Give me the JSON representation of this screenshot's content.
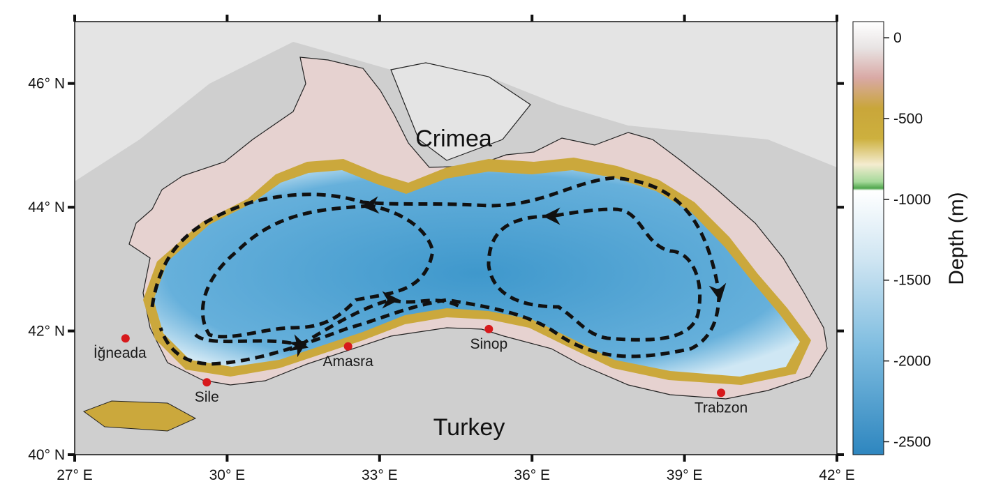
{
  "map": {
    "xlim": [
      27,
      42
    ],
    "ylim": [
      40,
      47
    ],
    "xticks": [
      {
        "value": 27,
        "label": "27° E"
      },
      {
        "value": 30,
        "label": "30° E"
      },
      {
        "value": 33,
        "label": "33° E"
      },
      {
        "value": 36,
        "label": "36° E"
      },
      {
        "value": 39,
        "label": "39° E"
      },
      {
        "value": 42,
        "label": "42° E"
      }
    ],
    "yticks": [
      {
        "value": 40,
        "label": "40° N"
      },
      {
        "value": 42,
        "label": "42° N"
      },
      {
        "value": 44,
        "label": "44° N"
      },
      {
        "value": 46,
        "label": "46° N"
      }
    ],
    "regions": [
      "Crimea",
      "Turkey"
    ],
    "cities": [
      {
        "name": "İğneada",
        "lon": 28.0,
        "lat": 41.88
      },
      {
        "name": "Sile",
        "lon": 29.6,
        "lat": 41.17
      },
      {
        "name": "Amasra",
        "lon": 32.38,
        "lat": 41.75
      },
      {
        "name": "Sinop",
        "lon": 35.15,
        "lat": 42.03
      },
      {
        "name": "Trabzon",
        "lon": 39.72,
        "lat": 41.0
      }
    ],
    "colorbar": {
      "label": "Depth (m)",
      "lim": [
        100,
        -2580
      ],
      "ticks": [
        0,
        -500,
        -1000,
        -1500,
        -2000,
        -2500
      ]
    }
  }
}
